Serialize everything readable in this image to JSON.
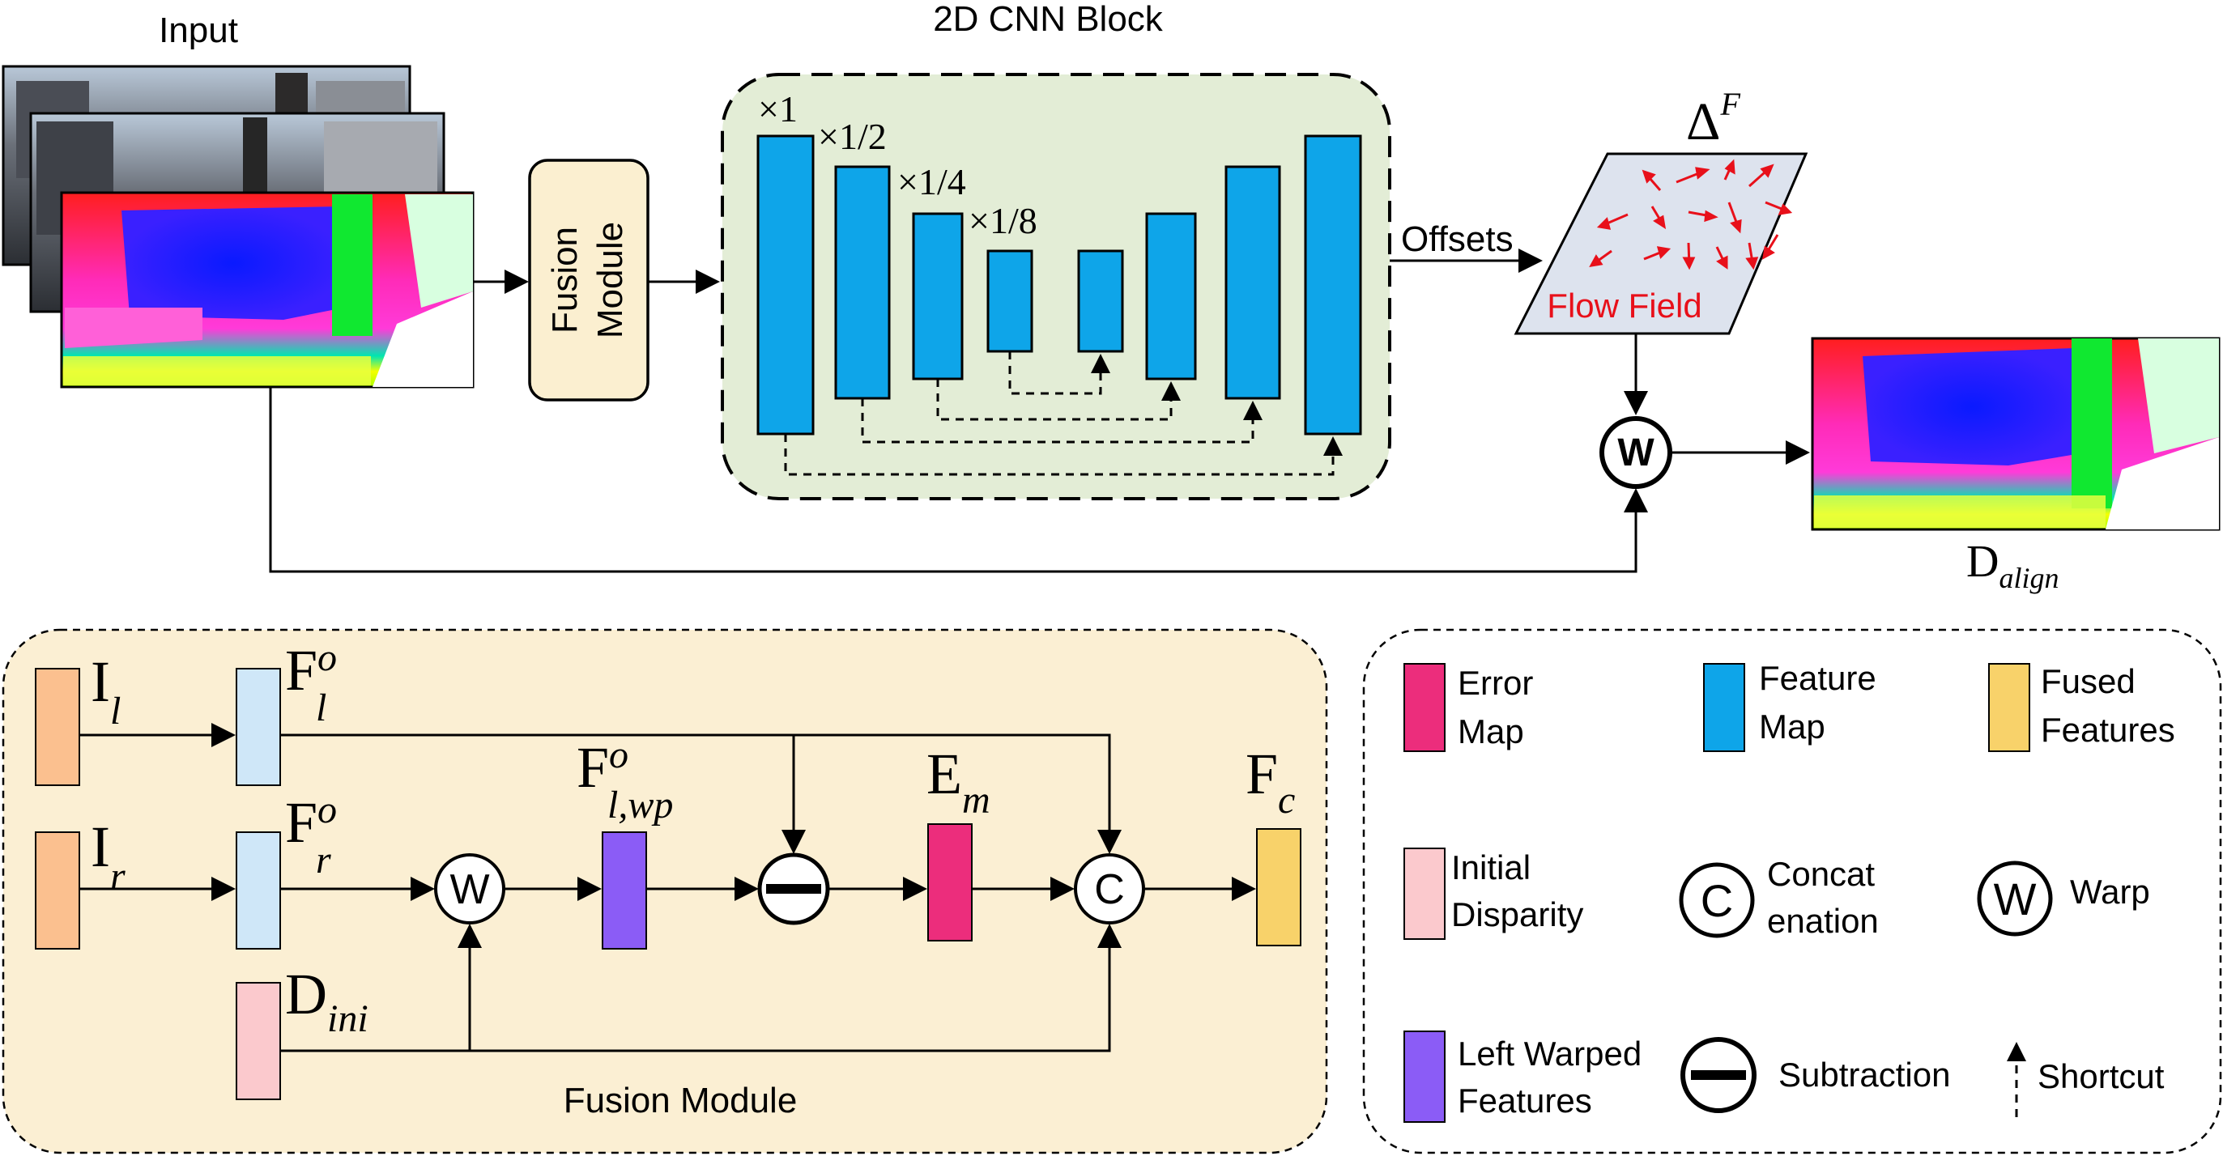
{
  "top": {
    "input_label": "Input",
    "cnn_block_title": "2D CNN Block",
    "fusion_module_box": {
      "line1": "Fusion",
      "line2": "Module"
    },
    "scales": {
      "s1": "×1",
      "s2": "×1/2",
      "s3": "×1/4",
      "s4": "×1/8"
    },
    "offsets_label": "Offsets",
    "flow_field_label": "Flow Field",
    "delta_symbol": "Δ",
    "delta_superscript": "F",
    "warp_symbol": "W",
    "output_base": "D",
    "output_subscript": "align"
  },
  "fusion": {
    "title": "Fusion Module",
    "I_l": {
      "base": "I",
      "sub": "l"
    },
    "I_r": {
      "base": "I",
      "sub": "r"
    },
    "F_l_o": {
      "base": "F",
      "sup": "o",
      "sub": "l"
    },
    "F_r_o": {
      "base": "F",
      "sup": "o",
      "sub": "r"
    },
    "F_lwp_o": {
      "base": "F",
      "sup": "o",
      "sub": "l,wp"
    },
    "E_m": {
      "base": "E",
      "sub": "m"
    },
    "F_c": {
      "base": "F",
      "sub": "c"
    },
    "D_ini": {
      "base": "D",
      "sub": "ini"
    },
    "warp_symbol": "W",
    "concat_symbol": "C"
  },
  "legend": {
    "error_map": {
      "line1": "Error",
      "line2": "Map"
    },
    "feature_map": {
      "line1": "Feature",
      "line2": "Map"
    },
    "fused_features": {
      "line1": "Fused",
      "line2": "Features"
    },
    "initial_disparity": {
      "line1": "Initial",
      "line2": "Disparity"
    },
    "concatenation": {
      "line1": "Concat",
      "line2": "enation"
    },
    "warp": "Warp",
    "left_warped_features": {
      "line1": "Left Warped",
      "line2": "Features"
    },
    "subtraction": "Subtraction",
    "shortcut": "Shortcut",
    "concat_symbol": "C",
    "warp_symbol": "W"
  },
  "colors": {
    "feature_blue": "#0ea5e9",
    "error_map": "#ec2d7c",
    "fused_features": "#f8d26a",
    "initial_disparity": "#fbc9cd",
    "left_warped": "#8b5cf6",
    "input_orange": "#fbc08f",
    "fusion_feature": "#cfe7f8",
    "cnn_bg": "#e3edd6",
    "fusion_bg": "#fbefd3",
    "fusion_box_bg": "#fbefd0",
    "flow_bg": "#dde3ee",
    "flow_text": "#e8101a"
  }
}
